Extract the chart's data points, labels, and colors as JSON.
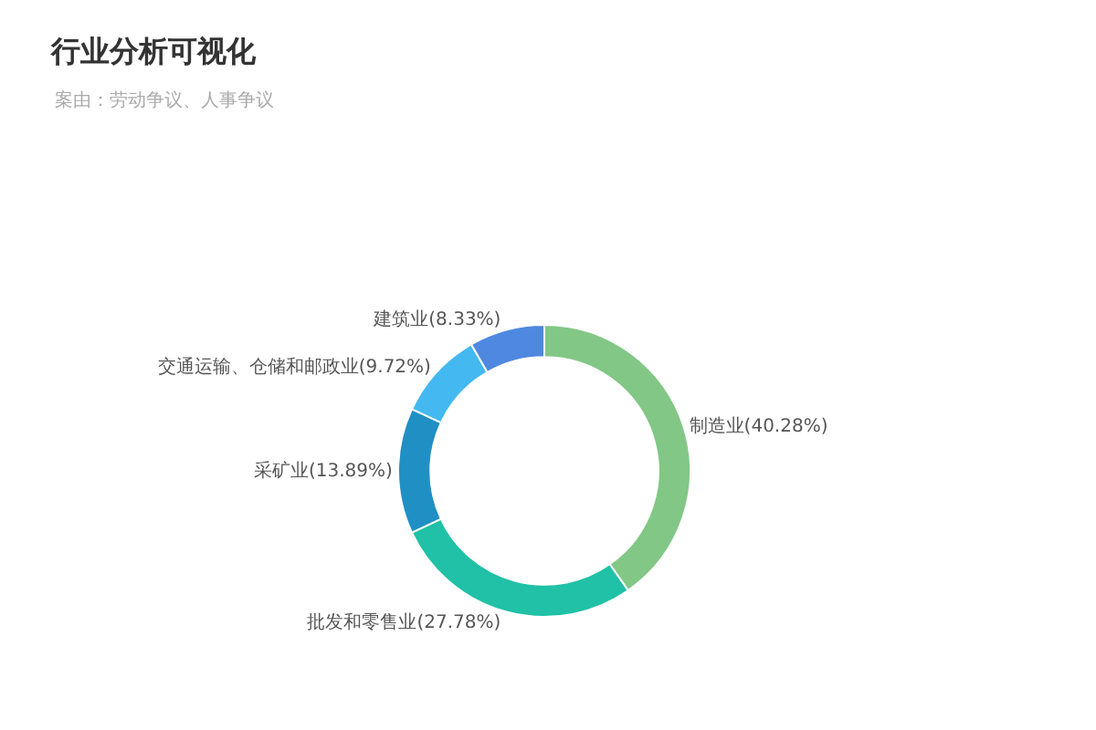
{
  "chart_data": {
    "type": "donut",
    "title": "行业分析可视化",
    "subtitle": "案由：劳动争议、人事争议",
    "categories": [
      "制造业",
      "批发和零售业",
      "采矿业",
      "交通运输、仓储和邮政业",
      "建筑业"
    ],
    "values": [
      40.28,
      27.78,
      13.89,
      9.72,
      8.33
    ],
    "value_labels": [
      "(40.28%)",
      "(27.78%)",
      "(13.89%)",
      "(9.72%)",
      "(8.33%)"
    ],
    "colors": [
      "#82c785",
      "#20c1a6",
      "#2090c4",
      "#44b8f0",
      "#4f88e0"
    ],
    "legend": false
  }
}
